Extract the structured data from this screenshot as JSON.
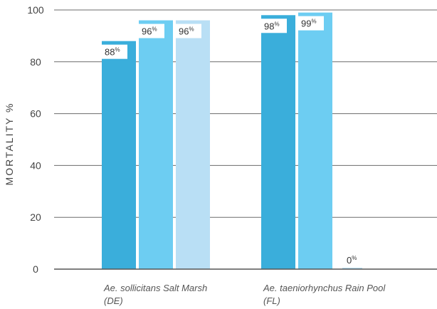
{
  "chart_data": {
    "type": "bar",
    "ylabel": "MORTALITY %",
    "ylim": [
      0,
      100
    ],
    "yticks": [
      0,
      20,
      40,
      60,
      80,
      100
    ],
    "grid": true,
    "categories": [
      {
        "line1": "Ae. sollicitans Salt Marsh",
        "line2": "(DE)"
      },
      {
        "line1": "Ae. taeniorhynchus Rain Pool",
        "line2": "(FL)"
      }
    ],
    "series": [
      {
        "color": "#3aaedb",
        "values": [
          88,
          98
        ]
      },
      {
        "color": "#6dcdf2",
        "values": [
          96,
          99
        ]
      },
      {
        "color": "#b9dff5",
        "values": [
          96,
          0
        ]
      }
    ],
    "value_suffix": "%"
  }
}
